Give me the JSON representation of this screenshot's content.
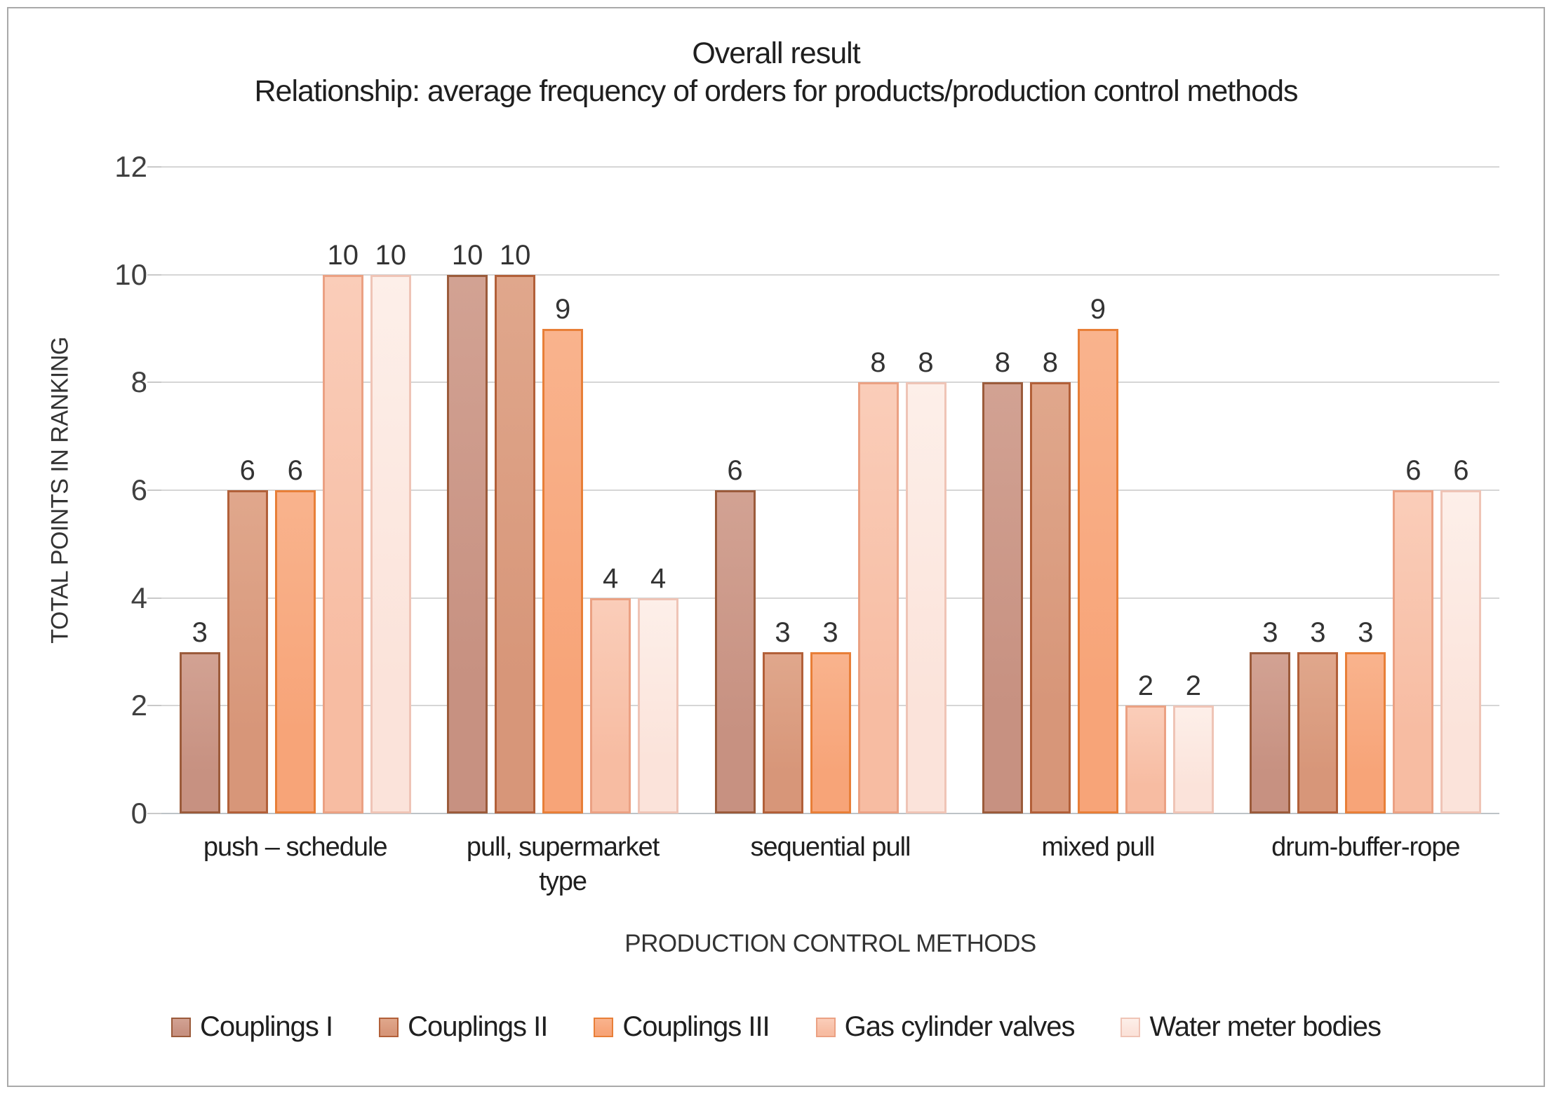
{
  "title": "Overall result",
  "subtitle": "Relationship: average frequency of orders for products/production control methods",
  "y_axis": {
    "title": "TOTAL POINTS IN RANKING",
    "ticks": [
      0,
      2,
      4,
      6,
      8,
      10,
      12
    ]
  },
  "x_axis": {
    "title": "PRODUCTION CONTROL METHODS"
  },
  "chart_data": {
    "type": "bar",
    "title": "Overall result",
    "subtitle": "Relationship: average frequency of orders for products/production control methods",
    "xlabel": "PRODUCTION CONTROL METHODS",
    "ylabel": "TOTAL POINTS IN RANKING",
    "ylim": [
      0,
      12
    ],
    "ytick_step": 2,
    "grid": true,
    "data_labels": true,
    "legend_position": "bottom",
    "categories": [
      "push – schedule",
      "pull, supermarket type",
      "sequential pull",
      "mixed pull",
      "drum-buffer-rope"
    ],
    "series": [
      {
        "name": "Couplings I",
        "values": [
          3,
          10,
          6,
          8,
          3
        ],
        "fill": "#C79181",
        "fill_light": "#D2A293",
        "border": "#9B5B3B"
      },
      {
        "name": "Couplings II",
        "values": [
          6,
          10,
          3,
          8,
          3
        ],
        "fill": "#D79679",
        "fill_light": "#E0A78C",
        "border": "#B26039"
      },
      {
        "name": "Couplings III",
        "values": [
          6,
          9,
          3,
          9,
          3
        ],
        "fill": "#F7A478",
        "fill_light": "#F9B38D",
        "border": "#E87F38"
      },
      {
        "name": "Gas cylinder valves",
        "values": [
          10,
          4,
          8,
          2,
          6
        ],
        "fill": "#F7BCA2",
        "fill_light": "#FACDB9",
        "border": "#EBA183"
      },
      {
        "name": "Water meter bodies",
        "values": [
          10,
          4,
          8,
          2,
          6
        ],
        "fill": "#FBE3DA",
        "fill_light": "#FDEFE9",
        "border": "#EFC4B6"
      }
    ],
    "grid_color": "#D6D6D6",
    "axis_line_color": "#BDC3C7"
  }
}
